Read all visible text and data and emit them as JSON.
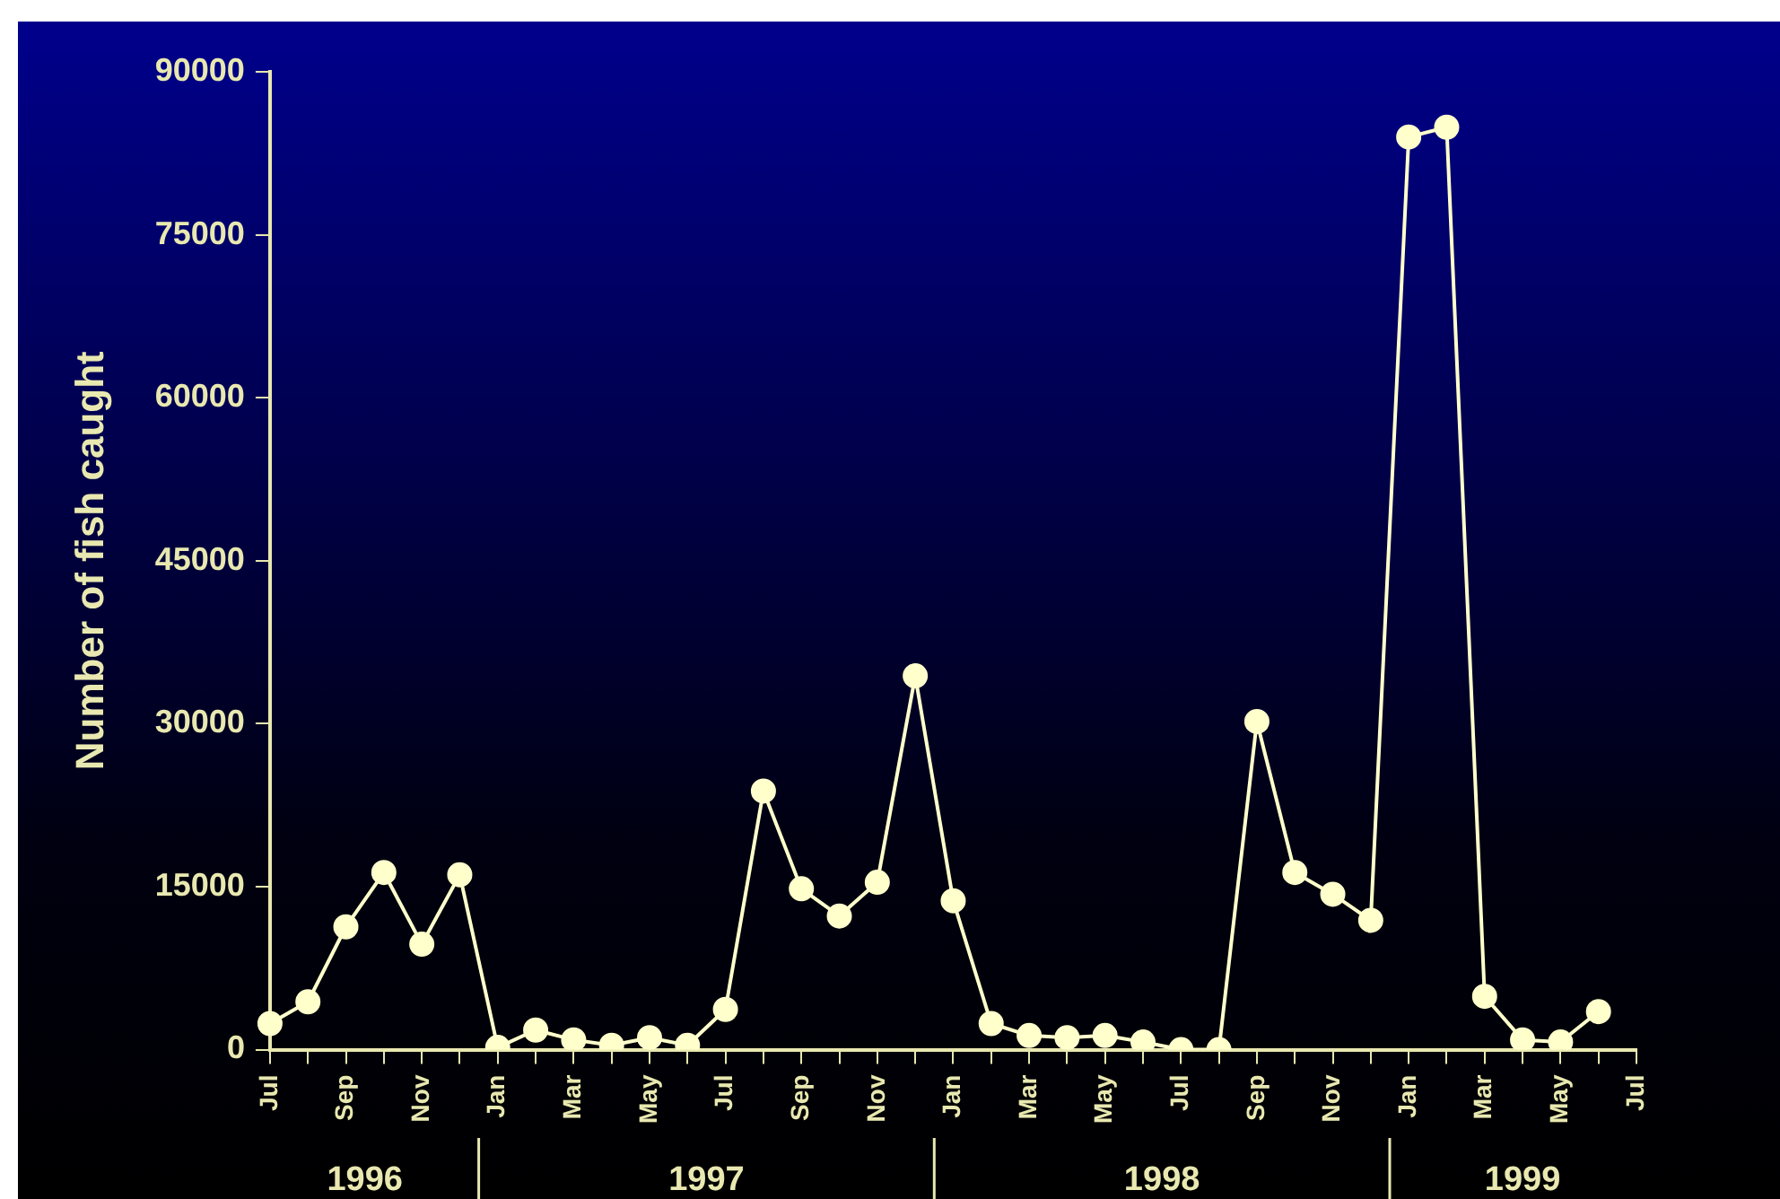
{
  "chart_data": {
    "type": "line",
    "ylabel": "Number of fish caught",
    "categories": [
      "Jul",
      null,
      "Sep",
      null,
      "Nov",
      null,
      "Jan",
      null,
      "Mar",
      null,
      "May",
      null,
      "Jul",
      null,
      "Sep",
      null,
      "Nov",
      null,
      "Jan",
      null,
      "Mar",
      null,
      "May",
      null,
      "Jul",
      null,
      "Sep",
      null,
      "Nov",
      null,
      "Jan",
      null,
      "Mar",
      null,
      "May",
      null,
      "Jul"
    ],
    "series": [
      {
        "color": "#ffffcc",
        "values": [
          2400,
          4400,
          11300,
          16300,
          9700,
          16100,
          200,
          1800,
          900,
          400,
          1100,
          400,
          3700,
          23800,
          14800,
          12300,
          15400,
          34400,
          13700,
          2400,
          1300,
          1100,
          1300,
          700,
          0,
          0,
          30200,
          16300,
          14300,
          11900,
          84000,
          84900,
          4900,
          900,
          700,
          3500,
          null
        ]
      }
    ],
    "ylim": [
      0,
      90000
    ],
    "yticks": [
      0,
      15000,
      30000,
      45000,
      60000,
      75000,
      90000
    ],
    "grid": false,
    "legend": false,
    "marker": "circle",
    "line_style": "solid",
    "annotations": [
      "1996",
      "1997",
      "1998",
      "1999"
    ]
  }
}
